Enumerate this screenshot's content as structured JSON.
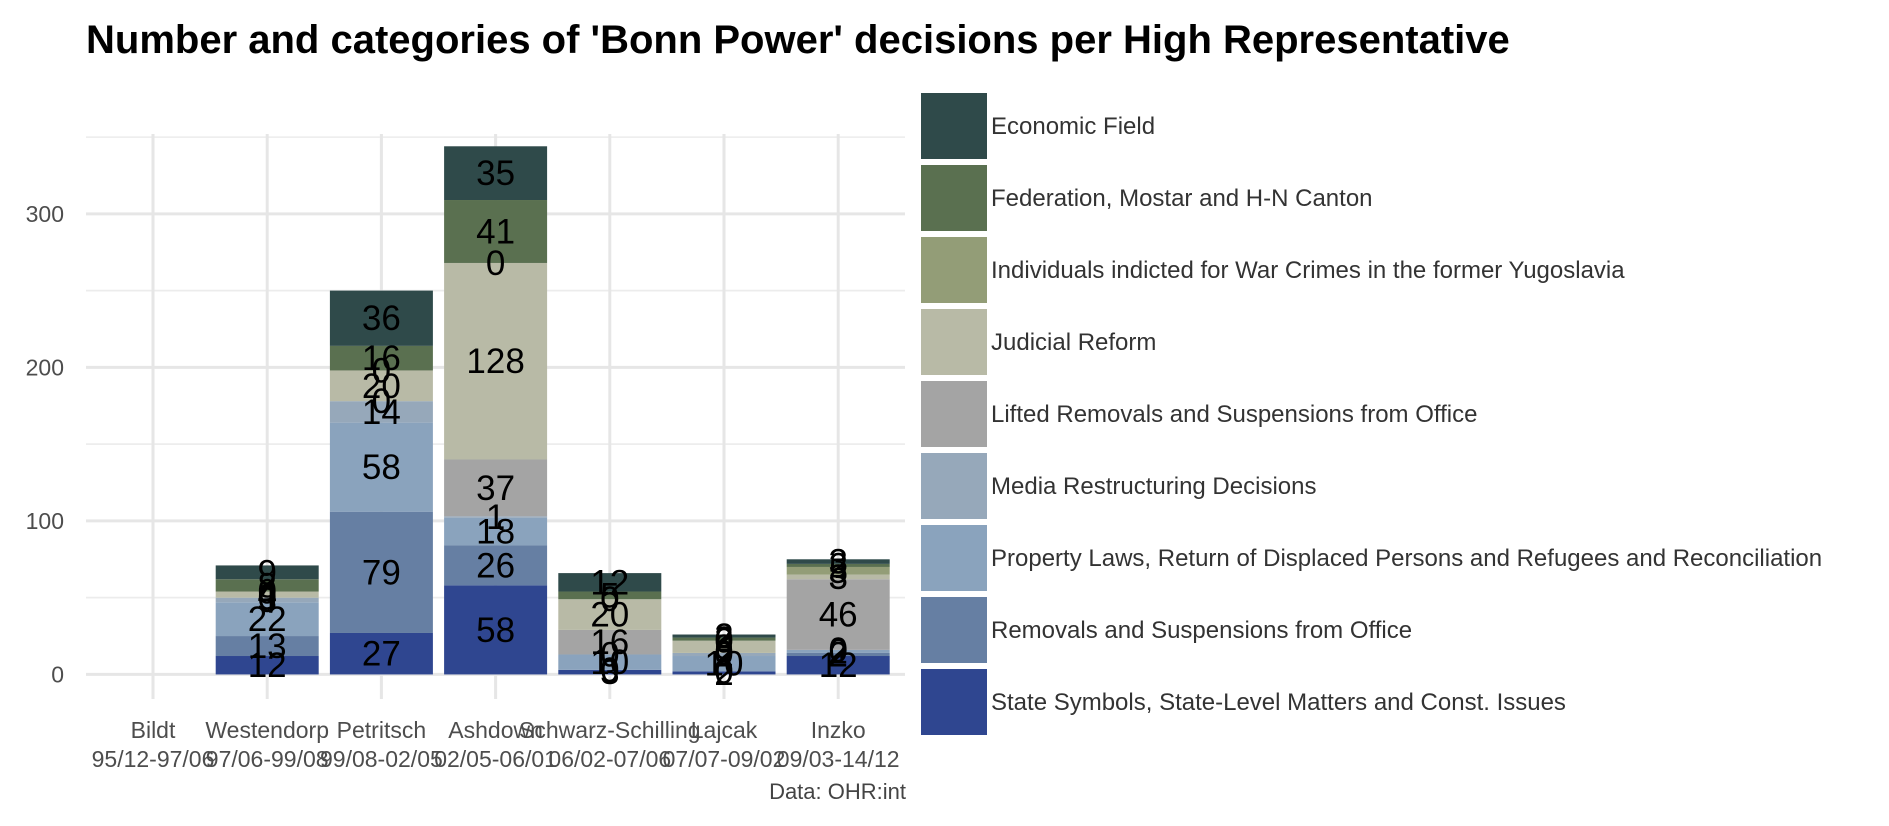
{
  "chart_data": {
    "type": "bar",
    "stacked": true,
    "title": "Number and categories of 'Bonn Power' decisions per High Representative",
    "source_note": "Data: OHR:int",
    "xlabel": "",
    "ylabel": "",
    "ylim": [
      -16,
      352
    ],
    "yticks": [
      0,
      100,
      200,
      300
    ],
    "grid": true,
    "legend_position": "right",
    "categories": [
      {
        "name": "Bildt",
        "period": "95/12-97/06"
      },
      {
        "name": "Westendorp",
        "period": "97/06-99/08"
      },
      {
        "name": "Petritsch",
        "period": "99/08-02/05"
      },
      {
        "name": "Ashdown",
        "period": "02/05-06/01"
      },
      {
        "name": "Schwarz-Schilling",
        "period": "06/02-07/06"
      },
      {
        "name": "Lajcak",
        "period": "07/07-09/02"
      },
      {
        "name": "Inzko",
        "period": "09/03-14/12"
      }
    ],
    "series": [
      {
        "name": "State Symbols, State-Level Matters and Const. Issues",
        "color": "#2f4690",
        "values": [
          0,
          12,
          27,
          58,
          3,
          2,
          12
        ]
      },
      {
        "name": "Removals and Suspensions from Office",
        "color": "#667fa3",
        "values": [
          0,
          13,
          79,
          26,
          0,
          0,
          2
        ]
      },
      {
        "name": "Property Laws, Return of Displaced Persons and Refugees and Reconciliation",
        "color": "#8aa3bd",
        "values": [
          0,
          22,
          58,
          18,
          10,
          10,
          2
        ]
      },
      {
        "name": "Media Restructuring Decisions",
        "color": "#96a8ba",
        "values": [
          0,
          3,
          14,
          1,
          0,
          2,
          0
        ]
      },
      {
        "name": "Lifted Removals and Suspensions from Office",
        "color": "#a4a4a4",
        "values": [
          0,
          0,
          0,
          37,
          16,
          0,
          46
        ]
      },
      {
        "name": "Judicial Reform",
        "color": "#b8baa6",
        "values": [
          0,
          4,
          20,
          128,
          20,
          8,
          3
        ]
      },
      {
        "name": "Individuals indicted for War Crimes in the former Yugoslavia",
        "color": "#939d77",
        "values": [
          0,
          0,
          0,
          0,
          0,
          0,
          5
        ]
      },
      {
        "name": "Federation, Mostar and H-N Canton",
        "color": "#5a7050",
        "values": [
          0,
          8,
          16,
          41,
          5,
          2,
          2
        ]
      },
      {
        "name": "Economic Field",
        "color": "#2f4a4a",
        "values": [
          0,
          9,
          36,
          35,
          12,
          2,
          3
        ]
      }
    ]
  }
}
